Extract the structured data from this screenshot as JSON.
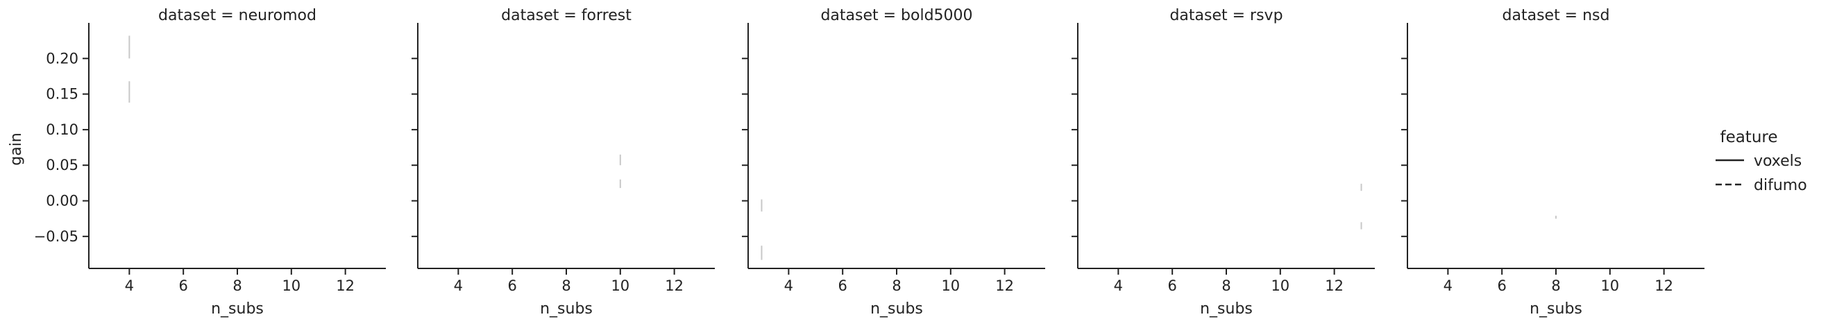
{
  "chart_data": {
    "type": "line",
    "layout": "facet-grid",
    "facet_variable": "dataset",
    "xlabel": "n_subs",
    "ylabel": "gain",
    "xlim": [
      2.5,
      13.5
    ],
    "ylim": [
      -0.095,
      0.25
    ],
    "xticks": [
      4,
      6,
      8,
      10,
      12
    ],
    "xtick_labels": [
      "4",
      "6",
      "8",
      "10",
      "12"
    ],
    "yticks": [
      0.2,
      0.15,
      0.1,
      0.05,
      0.0,
      -0.05
    ],
    "ytick_labels": [
      "0.20",
      "0.15",
      "0.10",
      "0.05",
      "0.00",
      "−0.05"
    ],
    "grid": false,
    "legend": {
      "title": "feature",
      "placement": "right",
      "entries": [
        {
          "label": "voxels",
          "style": "solid"
        },
        {
          "label": "difumo",
          "style": "dashed"
        }
      ]
    },
    "facets": [
      {
        "title": "dataset = neuromod",
        "series": [
          {
            "name": "voxels",
            "x": [
              4,
              4
            ],
            "y": [
              0.2,
              0.232
            ]
          },
          {
            "name": "difumo",
            "x": [
              4,
              4
            ],
            "y": [
              0.138,
              0.168
            ]
          }
        ]
      },
      {
        "title": "dataset = forrest",
        "series": [
          {
            "name": "voxels",
            "x": [
              10,
              10
            ],
            "y": [
              0.05,
              0.065
            ]
          },
          {
            "name": "difumo",
            "x": [
              10,
              10
            ],
            "y": [
              0.018,
              0.03
            ]
          }
        ]
      },
      {
        "title": "dataset = bold5000",
        "series": [
          {
            "name": "voxels",
            "x": [
              3,
              3
            ],
            "y": [
              -0.015,
              0.002
            ]
          },
          {
            "name": "difumo",
            "x": [
              3,
              3
            ],
            "y": [
              -0.083,
              -0.063
            ]
          }
        ]
      },
      {
        "title": "dataset = rsvp",
        "series": [
          {
            "name": "voxels",
            "x": [
              13,
              13
            ],
            "y": [
              0.014,
              0.024
            ]
          },
          {
            "name": "difumo",
            "x": [
              13,
              13
            ],
            "y": [
              -0.04,
              -0.03
            ]
          }
        ]
      },
      {
        "title": "dataset = nsd",
        "series": [
          {
            "name": "voxels",
            "x": [
              8,
              8
            ],
            "y": [
              -0.025,
              -0.021
            ]
          },
          {
            "name": "difumo",
            "x": [
              8,
              8
            ],
            "y": [
              -0.025,
              -0.023
            ]
          }
        ]
      }
    ]
  }
}
